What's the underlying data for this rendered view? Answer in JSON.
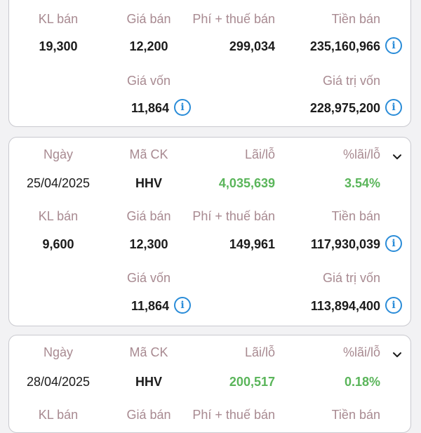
{
  "labels": {
    "ngay": "Ngày",
    "ma_ck": "Mã CK",
    "lai_lo": "Lãi/lỗ",
    "pct_lai_lo": "%lãi/lỗ",
    "kl_ban": "KL bán",
    "gia_ban": "Giá bán",
    "phi_thue_ban": "Phí + thuế bán",
    "tien_ban": "Tiền bán",
    "gia_von": "Giá vốn",
    "gia_tri_von": "Giá trị vốn"
  },
  "cards": [
    {
      "kl_ban": "19,300",
      "gia_ban": "12,200",
      "phi_thue_ban": "299,034",
      "tien_ban": "235,160,966",
      "gia_von": "11,864",
      "gia_tri_von": "228,975,200"
    },
    {
      "ngay": "25/04/2025",
      "ma_ck": "HHV",
      "lai_lo": "4,035,639",
      "pct_lai_lo": "3.54%",
      "kl_ban": "9,600",
      "gia_ban": "12,300",
      "phi_thue_ban": "149,961",
      "tien_ban": "117,930,039",
      "gia_von": "11,864",
      "gia_tri_von": "113,894,400"
    },
    {
      "ngay": "28/04/2025",
      "ma_ck": "HHV",
      "lai_lo": "200,517",
      "pct_lai_lo": "0.18%"
    }
  ],
  "icons": {
    "info": "info-icon",
    "chevron": "chevron-down-icon"
  },
  "colors": {
    "label": "#a88a91",
    "positive": "#5ab55a",
    "info": "#2a8cd8",
    "border": "#c9c9cf"
  }
}
